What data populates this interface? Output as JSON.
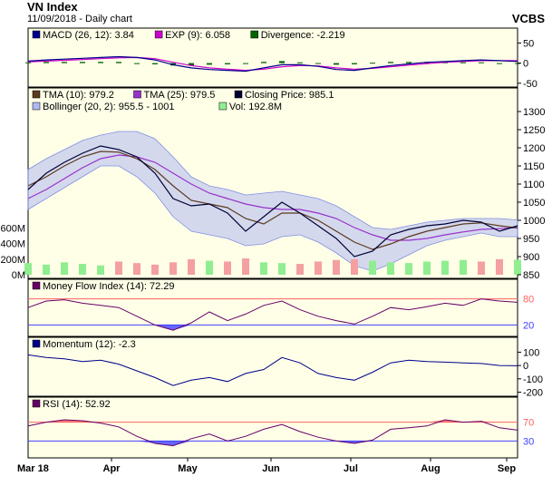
{
  "header": {
    "title": "VN Index",
    "subtitle": "11/09/2018 - Daily chart",
    "source": "VCBS"
  },
  "x_labels": [
    "Mar 18",
    "Apr",
    "May",
    "Jun",
    "Jul",
    "Aug",
    "Sep"
  ],
  "colors": {
    "macd": "#00008b",
    "exp": "#cc00cc",
    "divergence": "#006400",
    "tma10": "#5b3a1e",
    "tma25": "#9932cc",
    "close": "#000033",
    "bollinger": "#b0b8f0",
    "vol_up": "#90ee90",
    "vol_down": "#f4a0a0",
    "mfi": "#660066",
    "momentum": "#00008b",
    "rsi": "#660066",
    "overbought": "#ff6060",
    "oversold": "#4040ff"
  },
  "chart_data": [
    {
      "type": "line",
      "panel": "macd",
      "legend": [
        {
          "key": "macd",
          "label": "MACD (26, 12): 3.84"
        },
        {
          "key": "exp",
          "label": "EXP (9): 6.058"
        },
        {
          "key": "divergence",
          "label": "Divergence: -2.219"
        }
      ],
      "yticks": [
        "50",
        "0",
        "-50"
      ],
      "ylim": [
        -55,
        60
      ],
      "x": [
        0,
        5,
        10,
        15,
        20,
        25,
        30,
        35,
        40,
        45,
        50,
        55,
        60,
        65,
        70,
        75,
        80,
        85,
        90,
        95,
        100,
        105,
        110,
        115,
        120,
        125,
        130,
        135
      ],
      "series": [
        {
          "key": "macd",
          "values": [
            5,
            8,
            10,
            12,
            14,
            16,
            14,
            8,
            -4,
            -12,
            -16,
            -18,
            -20,
            -12,
            -4,
            -4,
            -8,
            -16,
            -18,
            -12,
            -6,
            -2,
            2,
            4,
            6,
            8,
            6,
            4
          ]
        },
        {
          "key": "exp",
          "values": [
            3,
            5,
            7,
            9,
            11,
            13,
            14,
            11,
            2,
            -6,
            -12,
            -15,
            -18,
            -15,
            -9,
            -6,
            -7,
            -12,
            -15,
            -13,
            -9,
            -5,
            -1,
            2,
            4,
            6,
            6,
            6
          ]
        },
        {
          "key": "divergence",
          "values": [
            2,
            3,
            3,
            3,
            3,
            3,
            0,
            -3,
            -6,
            -6,
            -4,
            -3,
            -2,
            3,
            5,
            2,
            -1,
            -4,
            -3,
            1,
            3,
            3,
            3,
            2,
            2,
            2,
            0,
            -2
          ]
        }
      ]
    },
    {
      "type": "line",
      "panel": "price",
      "legend": [
        {
          "key": "tma10",
          "label": "TMA (10): 979.2"
        },
        {
          "key": "tma25",
          "label": "TMA (25): 979.5"
        },
        {
          "key": "close",
          "label": "Closing Price: 985.1"
        },
        {
          "key": "bollinger",
          "label": "Bollinger (20, 2): 955.5 - 1001"
        },
        {
          "key": "vol",
          "label": "Vol: 192.8M"
        }
      ],
      "yticks": [
        "1300",
        "1250",
        "1200",
        "1150",
        "1100",
        "1050",
        "1000",
        "950",
        "900",
        "850"
      ],
      "vol_ticks": [
        "600M",
        "400M",
        "200M",
        "0M"
      ],
      "ylim": [
        850,
        1300
      ],
      "x": [
        0,
        5,
        10,
        15,
        20,
        25,
        30,
        35,
        40,
        45,
        50,
        55,
        60,
        65,
        70,
        75,
        80,
        85,
        90,
        95,
        100,
        105,
        110,
        115,
        120,
        125,
        130,
        135
      ],
      "series": [
        {
          "key": "close",
          "values": [
            1085,
            1130,
            1160,
            1185,
            1205,
            1195,
            1175,
            1130,
            1060,
            1040,
            1045,
            1020,
            970,
            1010,
            1050,
            1020,
            985,
            950,
            900,
            915,
            960,
            975,
            985,
            990,
            1000,
            995,
            970,
            985
          ]
        },
        {
          "key": "tma10",
          "values": [
            1095,
            1120,
            1150,
            1175,
            1190,
            1188,
            1170,
            1140,
            1095,
            1055,
            1045,
            1035,
            1005,
            990,
            1020,
            1020,
            1000,
            970,
            940,
            920,
            935,
            955,
            970,
            980,
            990,
            993,
            985,
            979
          ]
        },
        {
          "key": "tma25",
          "values": [
            1060,
            1085,
            1115,
            1145,
            1170,
            1180,
            1175,
            1160,
            1130,
            1100,
            1075,
            1060,
            1045,
            1035,
            1030,
            1030,
            1020,
            1005,
            980,
            960,
            945,
            945,
            950,
            960,
            968,
            975,
            977,
            980
          ]
        },
        {
          "key": "boll_upper",
          "values": [
            1140,
            1170,
            1195,
            1220,
            1235,
            1245,
            1245,
            1225,
            1175,
            1120,
            1095,
            1085,
            1070,
            1075,
            1080,
            1070,
            1060,
            1040,
            1010,
            980,
            975,
            985,
            995,
            1000,
            1005,
            1005,
            1005,
            1001
          ]
        },
        {
          "key": "boll_lower",
          "values": [
            1030,
            1060,
            1090,
            1120,
            1150,
            1150,
            1120,
            1075,
            1010,
            970,
            960,
            950,
            930,
            935,
            955,
            960,
            940,
            910,
            875,
            860,
            880,
            905,
            930,
            945,
            955,
            965,
            955,
            955
          ]
        }
      ],
      "volume": [
        150,
        130,
        160,
        140,
        120,
        170,
        150,
        130,
        160,
        200,
        180,
        170,
        210,
        160,
        150,
        140,
        170,
        190,
        200,
        180,
        160,
        150,
        170,
        180,
        190,
        170,
        200,
        193
      ]
    },
    {
      "type": "line",
      "panel": "mfi",
      "legend": [
        {
          "key": "mfi",
          "label": "Money Flow Index (14): 72.29"
        }
      ],
      "yticks": [
        "80",
        "20"
      ],
      "ylim": [
        0,
        100
      ],
      "x": [
        0,
        5,
        10,
        15,
        20,
        25,
        30,
        35,
        40,
        45,
        50,
        55,
        60,
        65,
        70,
        75,
        80,
        85,
        90,
        95,
        100,
        105,
        110,
        115,
        120,
        125,
        130,
        135
      ],
      "series": [
        {
          "key": "mfi",
          "values": [
            60,
            75,
            78,
            70,
            65,
            60,
            40,
            20,
            8,
            25,
            50,
            30,
            45,
            65,
            75,
            55,
            40,
            30,
            22,
            40,
            60,
            55,
            62,
            70,
            65,
            80,
            75,
            72
          ]
        }
      ]
    },
    {
      "type": "line",
      "panel": "momentum",
      "legend": [
        {
          "key": "momentum",
          "label": "Momentum (12): -2.3"
        }
      ],
      "yticks": [
        "100",
        "0",
        "-100",
        "-200"
      ],
      "ylim": [
        -210,
        130
      ],
      "x": [
        0,
        5,
        10,
        15,
        20,
        25,
        30,
        35,
        40,
        45,
        50,
        55,
        60,
        65,
        70,
        75,
        80,
        85,
        90,
        95,
        100,
        105,
        110,
        115,
        120,
        125,
        130,
        135
      ],
      "series": [
        {
          "key": "momentum",
          "values": [
            80,
            60,
            50,
            30,
            40,
            10,
            -40,
            -90,
            -150,
            -110,
            -90,
            -120,
            -60,
            -30,
            60,
            20,
            -60,
            -90,
            -110,
            -50,
            20,
            40,
            30,
            25,
            20,
            15,
            0,
            -2
          ]
        }
      ]
    },
    {
      "type": "line",
      "panel": "rsi",
      "legend": [
        {
          "key": "rsi",
          "label": "RSI (14): 52.92"
        }
      ],
      "yticks": [
        "70",
        "30"
      ],
      "ylim": [
        0,
        100
      ],
      "x": [
        0,
        5,
        10,
        15,
        20,
        25,
        30,
        35,
        40,
        45,
        50,
        55,
        60,
        65,
        70,
        75,
        80,
        85,
        90,
        95,
        100,
        105,
        110,
        115,
        120,
        125,
        130,
        135
      ],
      "series": [
        {
          "key": "rsi",
          "values": [
            62,
            70,
            75,
            73,
            68,
            60,
            40,
            25,
            20,
            35,
            45,
            30,
            40,
            55,
            65,
            50,
            38,
            30,
            25,
            32,
            55,
            58,
            62,
            75,
            70,
            72,
            58,
            53
          ]
        }
      ]
    }
  ]
}
